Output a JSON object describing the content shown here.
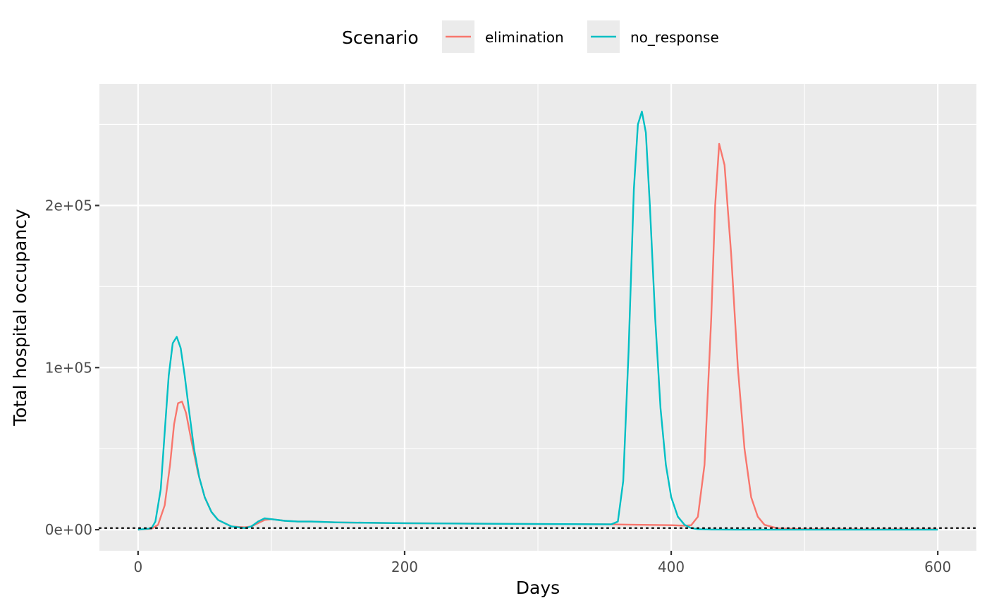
{
  "chart_data": {
    "type": "line",
    "xlabel": "Days",
    "ylabel": "Total hospital occupancy",
    "xlim": [
      -29,
      629
    ],
    "ylim": [
      -13000,
      275000
    ],
    "x_ticks": [
      0,
      200,
      400,
      600
    ],
    "x_tick_labels": [
      "0",
      "200",
      "400",
      "600"
    ],
    "x_minor_ticks": [
      100,
      300,
      500
    ],
    "y_ticks": [
      0,
      100000,
      200000
    ],
    "y_tick_labels": [
      "0e+00",
      "1e+05",
      "2e+05"
    ],
    "y_minor_ticks": [
      50000,
      150000,
      250000
    ],
    "grid": true,
    "legend": {
      "title": "Scenario",
      "position": "top",
      "entries": [
        "elimination",
        "no_response"
      ]
    },
    "reference_line": {
      "y": 1000,
      "style": "dotted",
      "color": "#000000"
    },
    "series": [
      {
        "name": "elimination",
        "color": "#F8766D",
        "x": [
          0,
          10,
          15,
          20,
          24,
          27,
          30,
          33,
          36,
          40,
          45,
          50,
          55,
          60,
          70,
          80,
          85,
          90,
          95,
          100,
          110,
          120,
          130,
          150,
          200,
          250,
          300,
          350,
          400,
          410,
          415,
          420,
          425,
          430,
          433,
          436,
          440,
          445,
          450,
          455,
          460,
          465,
          470,
          480,
          500,
          550,
          600
        ],
        "y": [
          0,
          500,
          3000,
          15000,
          40000,
          65000,
          78000,
          79000,
          72000,
          55000,
          35000,
          20000,
          11000,
          6000,
          2000,
          1500,
          2000,
          4000,
          6000,
          6500,
          5500,
          5000,
          5000,
          4500,
          4000,
          3800,
          3500,
          3300,
          2800,
          2500,
          2800,
          8000,
          40000,
          130000,
          200000,
          238000,
          225000,
          170000,
          100000,
          50000,
          20000,
          8000,
          3000,
          800,
          300,
          200,
          200
        ]
      },
      {
        "name": "no_response",
        "color": "#00BFC4",
        "x": [
          0,
          10,
          13,
          17,
          20,
          23,
          26,
          29,
          32,
          35,
          38,
          42,
          46,
          50,
          55,
          60,
          70,
          80,
          85,
          90,
          95,
          100,
          110,
          120,
          130,
          150,
          200,
          250,
          300,
          355,
          360,
          364,
          368,
          372,
          375,
          378,
          381,
          384,
          388,
          392,
          396,
          400,
          405,
          410,
          415,
          420,
          430,
          450,
          500,
          550,
          600
        ],
        "y": [
          0,
          800,
          5000,
          25000,
          60000,
          95000,
          115000,
          119000,
          112000,
          95000,
          75000,
          50000,
          32000,
          20000,
          11000,
          6000,
          2000,
          1000,
          2000,
          5000,
          7000,
          6500,
          5500,
          5000,
          5000,
          4500,
          4000,
          3700,
          3500,
          3300,
          5000,
          30000,
          110000,
          210000,
          250000,
          258000,
          245000,
          200000,
          130000,
          75000,
          40000,
          20000,
          8000,
          3000,
          1000,
          300,
          100,
          0,
          0,
          0,
          0
        ]
      }
    ]
  }
}
